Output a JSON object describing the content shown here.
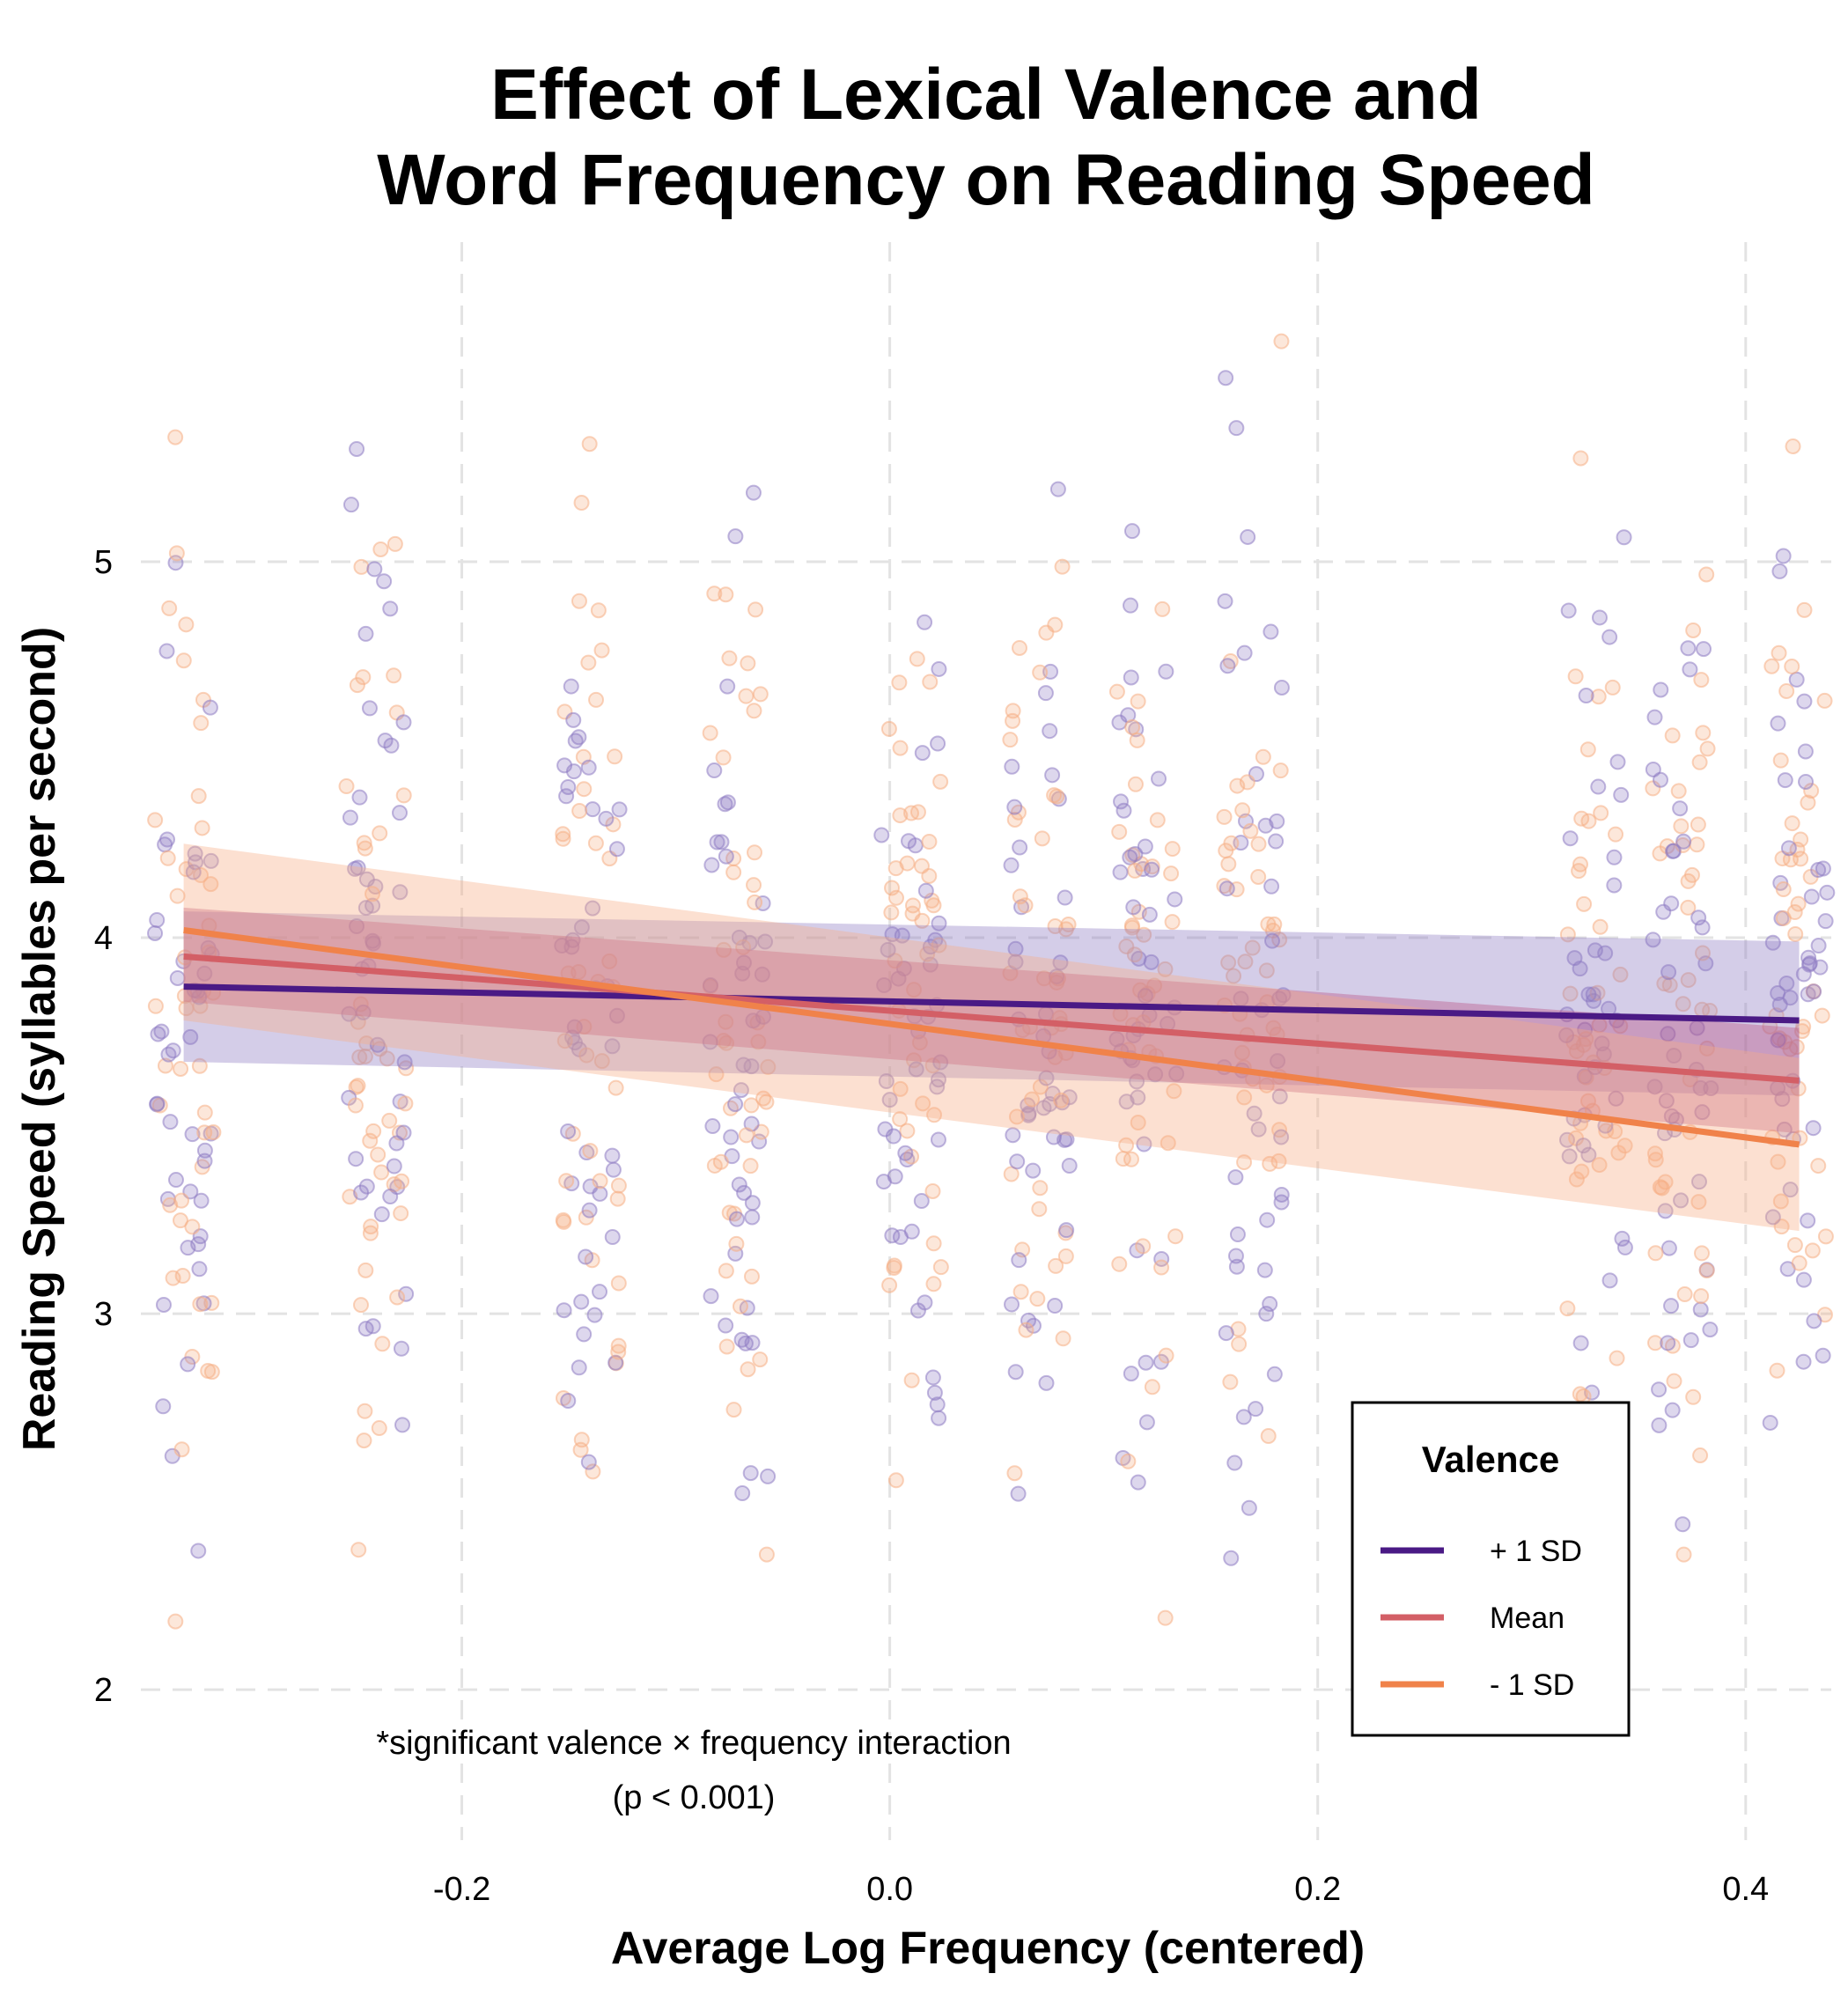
{
  "chart_data": {
    "type": "line",
    "title_lines": [
      "Effect of Lexical Valence and",
      "Word Frequency on Reading Speed"
    ],
    "xlabel": "Average Log Frequency (centered)",
    "ylabel": "Reading Speed (syllables per second)",
    "xlim": [
      -0.35,
      0.44
    ],
    "ylim": [
      1.6,
      5.85
    ],
    "xticks": [
      -0.2,
      0.0,
      0.2,
      0.4
    ],
    "xtick_labels": [
      "-0.2",
      "0.0",
      "0.2",
      "0.4"
    ],
    "yticks": [
      2,
      3,
      4,
      5
    ],
    "ytick_labels": [
      "2",
      "3",
      "4",
      "5"
    ],
    "grid": true,
    "legend": {
      "title": "Valence",
      "position": "bottom-right",
      "entries": [
        "+ 1 SD",
        "Mean",
        "- 1 SD"
      ]
    },
    "annotation_lines": [
      "*significant valence × frequency interaction",
      "(p < 0.001)"
    ],
    "x_range": [
      -0.33,
      0.425
    ],
    "series": [
      {
        "name": "+ 1 SD",
        "color": "#4a1a85",
        "fill": "#8e7cc3",
        "y_start": 3.87,
        "y_end": 3.78,
        "ci_start": [
          3.67,
          4.07
        ],
        "ci_end": [
          3.58,
          3.99
        ]
      },
      {
        "name": "Mean",
        "color": "#d35f66",
        "fill": "#b84c7e",
        "y_start": 3.95,
        "y_end": 3.62,
        "ci_start": [
          3.83,
          4.08
        ],
        "ci_end": [
          3.48,
          3.76
        ]
      },
      {
        "name": "- 1 SD",
        "color": "#f0824a",
        "fill": "#f6ae85",
        "y_start": 4.02,
        "y_end": 3.45,
        "ci_start": [
          3.78,
          4.25
        ],
        "ci_end": [
          3.22,
          3.68
        ]
      }
    ],
    "scatter_groups": {
      "x_centers": [
        -0.33,
        -0.24,
        -0.14,
        -0.07,
        0.01,
        0.07,
        0.12,
        0.17,
        0.33,
        0.37,
        0.425
      ],
      "colors": [
        "#8e7cc3",
        "#f6ae85"
      ],
      "points_per_group": 90
    }
  }
}
